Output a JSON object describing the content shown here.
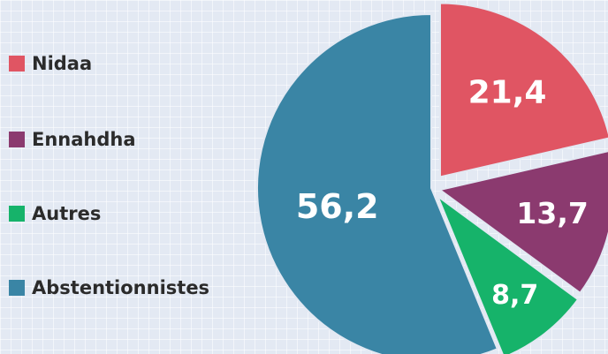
{
  "chart_data": {
    "type": "pie",
    "title": "",
    "legend_position": "left",
    "slices": [
      {
        "name": "Nidaa",
        "value": 21.4,
        "label": "21,4",
        "color": "#e05563"
      },
      {
        "name": "Ennahdha",
        "value": 13.7,
        "label": "13,7",
        "color": "#8b3a6f"
      },
      {
        "name": "Autres",
        "value": 8.7,
        "label": "8,7",
        "color": "#16b36a"
      },
      {
        "name": "Abstentionnistes",
        "value": 56.2,
        "label": "56,2",
        "color": "#3a85a5"
      }
    ]
  }
}
